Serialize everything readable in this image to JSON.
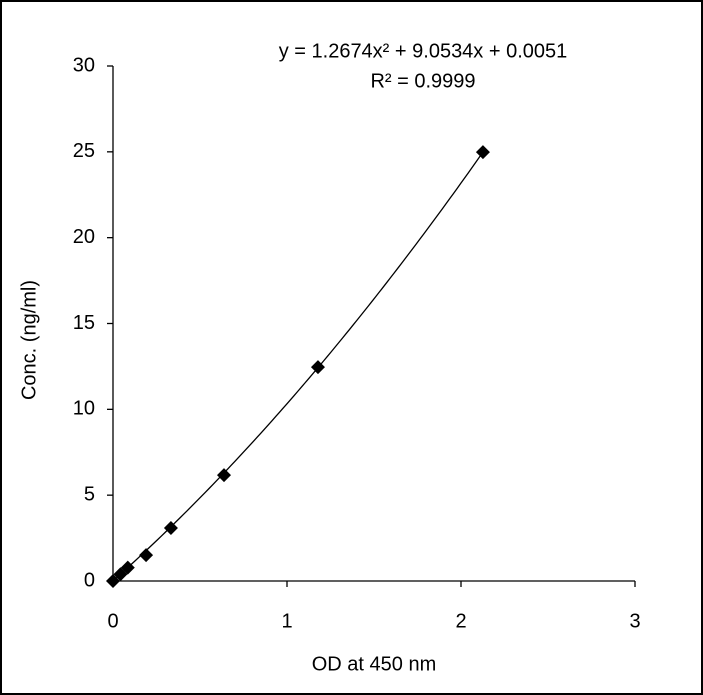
{
  "chart_data": {
    "type": "scatter",
    "x_label": "OD at 450 nm",
    "y_label": "Conc. (ng/ml)",
    "series": [
      {
        "color": "#000000",
        "x": [
          0.0,
          0.043,
          0.085,
          0.19,
          0.333,
          0.638,
          1.178,
          2.126
        ],
        "values": [
          0,
          0.39,
          0.78,
          1.51,
          3.09,
          6.17,
          12.46,
          24.98
        ]
      }
    ],
    "trendline": {
      "equation": "y = 1.2674x² + 9.0534x + 0.0051",
      "r_squared": "R² = 0.9999",
      "coefficients": [
        1.2674,
        9.0534,
        0.0051
      ]
    },
    "xlim": [
      0,
      3
    ],
    "xticks": [
      0,
      1,
      2,
      3
    ],
    "ylim": [
      0,
      30
    ],
    "yticks": [
      0,
      5,
      10,
      15,
      20,
      25,
      30
    ]
  }
}
